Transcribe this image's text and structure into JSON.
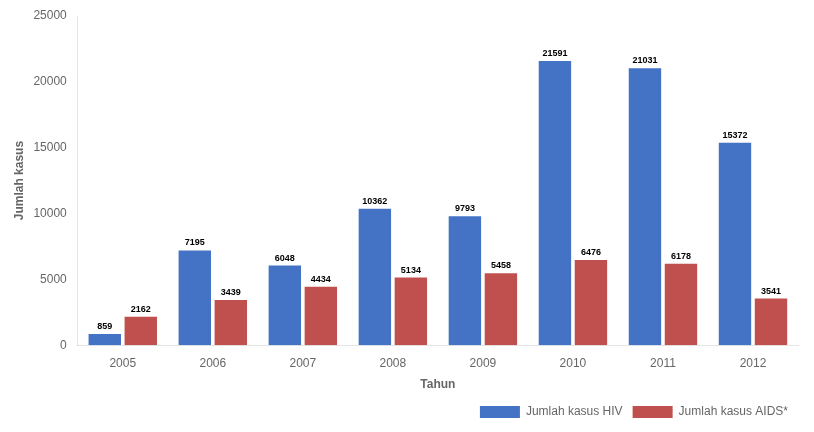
{
  "chart_data": {
    "type": "bar",
    "categories": [
      "2005",
      "2006",
      "2007",
      "2008",
      "2009",
      "2010",
      "2011",
      "2012"
    ],
    "series": [
      {
        "name": "Jumlah kasus HIV",
        "color": "#4472C4",
        "values": [
          859,
          7195,
          6048,
          10362,
          9793,
          21591,
          21031,
          15372
        ]
      },
      {
        "name": "Jumlah kasus AIDS*",
        "color": "#C0504D",
        "values": [
          2162,
          3439,
          4434,
          5134,
          5458,
          6476,
          6178,
          3541
        ]
      }
    ],
    "xlabel": "Tahun",
    "ylabel": "Jumlah kasus",
    "ylim": [
      0,
      25000
    ],
    "yticks": [
      0,
      5000,
      10000,
      15000,
      20000,
      25000
    ],
    "grid": false,
    "legend": "lower right",
    "data_labels": true
  }
}
